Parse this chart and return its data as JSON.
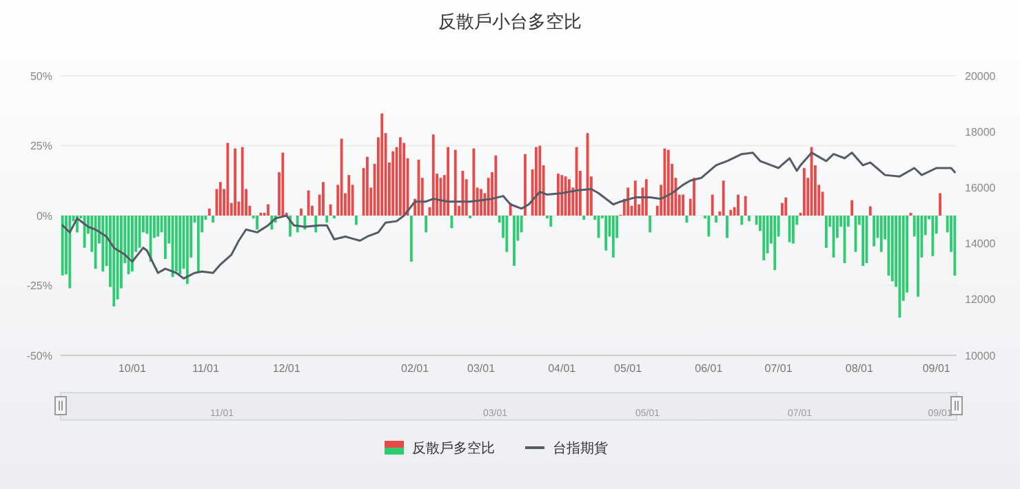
{
  "chart_data": {
    "type": "bar",
    "title": "反散戶小台多空比",
    "categories": [
      null,
      null,
      null,
      null,
      null,
      null,
      null,
      null,
      null,
      null,
      null,
      null,
      null,
      null,
      null,
      null,
      null,
      null,
      null,
      "10/01",
      null,
      null,
      null,
      null,
      null,
      null,
      null,
      null,
      null,
      null,
      null,
      null,
      null,
      null,
      null,
      null,
      null,
      null,
      null,
      "11/01",
      null,
      null,
      null,
      null,
      null,
      null,
      null,
      null,
      null,
      null,
      null,
      null,
      null,
      null,
      null,
      null,
      null,
      null,
      null,
      null,
      null,
      "12/01",
      null,
      null,
      null,
      null,
      null,
      null,
      null,
      null,
      null,
      null,
      null,
      null,
      null,
      null,
      null,
      null,
      null,
      null,
      null,
      null,
      null,
      null,
      null,
      null,
      null,
      null,
      null,
      null,
      null,
      null,
      null,
      null,
      null,
      null,
      "02/01",
      null,
      null,
      null,
      null,
      null,
      null,
      null,
      null,
      null,
      null,
      null,
      null,
      null,
      null,
      null,
      null,
      null,
      "03/01",
      null,
      null,
      null,
      null,
      null,
      null,
      null,
      null,
      null,
      null,
      null,
      null,
      null,
      null,
      null,
      null,
      null,
      null,
      null,
      null,
      null,
      "04/01",
      null,
      null,
      null,
      null,
      null,
      null,
      null,
      null,
      null,
      null,
      null,
      null,
      null,
      null,
      null,
      null,
      null,
      "05/01",
      null,
      null,
      null,
      null,
      null,
      null,
      null,
      null,
      null,
      null,
      null,
      null,
      null,
      null,
      null,
      null,
      null,
      null,
      null,
      null,
      null,
      "06/01",
      null,
      null,
      null,
      null,
      null,
      null,
      null,
      null,
      null,
      null,
      null,
      null,
      null,
      null,
      null,
      null,
      null,
      null,
      "07/01",
      null,
      null,
      null,
      null,
      null,
      null,
      null,
      null,
      null,
      null,
      null,
      null,
      null,
      null,
      null,
      null,
      null,
      null,
      null,
      null,
      null,
      "08/01",
      null,
      null,
      null,
      null,
      null,
      null,
      null,
      null,
      null,
      null,
      null,
      null,
      null,
      null,
      null,
      null,
      null,
      null,
      null,
      null,
      "09/01",
      null,
      null,
      null,
      null,
      null
    ],
    "series": [
      {
        "name": "反散戶多空比",
        "values": [
          -21.4,
          -21,
          -26,
          -2,
          -6,
          -1,
          -11.5,
          -6.5,
          -13,
          -19,
          -10,
          -20,
          -18,
          -25.5,
          -32.5,
          -30,
          -26,
          -17,
          -21,
          -20,
          -13,
          -11.5,
          -6,
          -6.5,
          -16.5,
          -8,
          -7.5,
          -6,
          -15.5,
          -10,
          -22,
          -20,
          -21,
          -19,
          -24.5,
          -15,
          -2.5,
          -20,
          -6,
          -1.5,
          2.5,
          -2.5,
          9.5,
          12,
          9.5,
          26,
          4.5,
          24,
          5,
          24.5,
          9.5,
          3.5,
          -1,
          -5,
          1,
          1,
          4,
          -5,
          -2.5,
          15.5,
          22.5,
          1,
          -7.5,
          0,
          -6,
          2.5,
          -5,
          9,
          3.5,
          -6,
          7.5,
          12,
          -2.5,
          4,
          -1,
          11,
          27.5,
          8,
          14.5,
          11,
          -3.3,
          0,
          17,
          21,
          10,
          18.5,
          28,
          36.5,
          29.5,
          19,
          23,
          24.5,
          28,
          26,
          20.5,
          -16.5,
          6,
          20,
          13.5,
          -6,
          3,
          29,
          15,
          13.5,
          14.5,
          24.5,
          -4.5,
          23.5,
          3.5,
          16,
          13,
          -1,
          24,
          10,
          9.5,
          8,
          13.5,
          15.5,
          21.5,
          -2.5,
          -8,
          -13,
          4.5,
          -18,
          -9,
          -6,
          22,
          0,
          16.5,
          24.5,
          25,
          18,
          -1,
          -4,
          0,
          15,
          14.5,
          14,
          13,
          10,
          24.5,
          16,
          -1.5,
          29.5,
          14,
          -1.5,
          -8,
          -1,
          -12.5,
          -7.5,
          -15,
          -8,
          0.3,
          6,
          10,
          3.5,
          12.5,
          4,
          10,
          13,
          -6,
          0,
          3.5,
          11,
          24,
          23.5,
          18.5,
          13.5,
          7.5,
          7.5,
          -2.5,
          6,
          13.5,
          0,
          0,
          -1,
          -7.5,
          7.5,
          -2.5,
          1.5,
          12.5,
          -8,
          2,
          3,
          7.5,
          -3.3,
          7,
          -2,
          0,
          -3.3,
          -5.5,
          -16,
          -13.5,
          -10,
          -19.5,
          -7.5,
          4.5,
          6.5,
          -9.5,
          -10,
          -3.3,
          1,
          17,
          13.5,
          24.5,
          18,
          11,
          8.5,
          -11.5,
          -4,
          -15,
          -8,
          -4,
          -17,
          -4,
          5.5,
          -13,
          -3.3,
          -18,
          -17,
          3.3,
          -11,
          -8,
          -13,
          -8.5,
          -21.5,
          -23.5,
          -25.5,
          -36.5,
          -30.5,
          -27.5,
          1,
          -7.5,
          -29,
          -15,
          -7,
          -1.3,
          -14.5,
          -6.5,
          8,
          0,
          -6,
          -13,
          -21.5
        ],
        "colors": [
          "#2ecc71",
          "#2ecc71",
          "#2ecc71",
          "#2ecc71",
          "#2ecc71",
          "#2ecc71",
          "#2ecc71",
          "#2ecc71",
          "#2ecc71",
          "#2ecc71",
          "#2ecc71",
          "#2ecc71",
          "#2ecc71",
          "#2ecc71",
          "#2ecc71",
          "#2ecc71",
          "#2ecc71",
          "#2ecc71",
          "#2ecc71",
          "#2ecc71",
          "#2ecc71",
          "#2ecc71",
          "#2ecc71",
          "#2ecc71",
          "#2ecc71",
          "#2ecc71",
          "#2ecc71",
          "#2ecc71",
          "#2ecc71",
          "#2ecc71",
          "#2ecc71",
          "#2ecc71",
          "#2ecc71",
          "#2ecc71",
          "#2ecc71",
          "#2ecc71",
          "#2ecc71",
          "#2ecc71",
          "#2ecc71",
          "#2ecc71",
          "#e84a4a",
          "#2ecc71",
          "#e84a4a",
          "#e84a4a",
          "#e84a4a",
          "#e84a4a",
          "#e84a4a",
          "#e84a4a",
          "#e84a4a",
          "#e84a4a",
          "#e84a4a",
          "#e84a4a",
          "#2ecc71",
          "#2ecc71",
          "#e84a4a",
          "#e84a4a",
          "#e84a4a",
          "#2ecc71",
          "#2ecc71",
          "#e84a4a",
          "#e84a4a",
          "#e84a4a",
          "#2ecc71",
          "#2ecc71",
          "#2ecc71",
          "#e84a4a",
          "#2ecc71",
          "#e84a4a",
          "#e84a4a",
          "#2ecc71",
          "#e84a4a",
          "#e84a4a",
          "#2ecc71",
          "#e84a4a",
          "#2ecc71",
          "#e84a4a",
          "#e84a4a",
          "#e84a4a",
          "#e84a4a",
          "#e84a4a",
          "#2ecc71",
          "#2ecc71",
          "#e84a4a",
          "#e84a4a",
          "#e84a4a",
          "#e84a4a",
          "#e84a4a",
          "#e84a4a",
          "#e84a4a",
          "#e84a4a",
          "#e84a4a",
          "#e84a4a",
          "#e84a4a",
          "#e84a4a",
          "#e84a4a",
          "#2ecc71",
          "#e84a4a",
          "#e84a4a",
          "#e84a4a",
          "#2ecc71",
          "#e84a4a",
          "#e84a4a",
          "#e84a4a",
          "#e84a4a",
          "#e84a4a",
          "#e84a4a",
          "#2ecc71",
          "#e84a4a",
          "#e84a4a",
          "#e84a4a",
          "#e84a4a",
          "#2ecc71",
          "#e84a4a",
          "#e84a4a",
          "#e84a4a",
          "#e84a4a",
          "#e84a4a",
          "#e84a4a",
          "#e84a4a",
          "#2ecc71",
          "#2ecc71",
          "#2ecc71",
          "#e84a4a",
          "#2ecc71",
          "#2ecc71",
          "#2ecc71",
          "#e84a4a",
          "#2ecc71",
          "#e84a4a",
          "#e84a4a",
          "#e84a4a",
          "#e84a4a",
          "#2ecc71",
          "#2ecc71",
          "#2ecc71",
          "#e84a4a",
          "#e84a4a",
          "#e84a4a",
          "#e84a4a",
          "#e84a4a",
          "#e84a4a",
          "#e84a4a",
          "#2ecc71",
          "#e84a4a",
          "#e84a4a",
          "#2ecc71",
          "#2ecc71",
          "#2ecc71",
          "#2ecc71",
          "#2ecc71",
          "#2ecc71",
          "#2ecc71",
          "#e84a4a",
          "#e84a4a",
          "#e84a4a",
          "#e84a4a",
          "#e84a4a",
          "#e84a4a",
          "#e84a4a",
          "#e84a4a",
          "#2ecc71",
          "#2ecc71",
          "#e84a4a",
          "#e84a4a",
          "#e84a4a",
          "#e84a4a",
          "#e84a4a",
          "#e84a4a",
          "#e84a4a",
          "#e84a4a",
          "#2ecc71",
          "#e84a4a",
          "#e84a4a",
          "#2ecc71",
          "#2ecc71",
          "#2ecc71",
          "#2ecc71",
          "#e84a4a",
          "#2ecc71",
          "#e84a4a",
          "#e84a4a",
          "#2ecc71",
          "#e84a4a",
          "#e84a4a",
          "#e84a4a",
          "#2ecc71",
          "#e84a4a",
          "#2ecc71",
          "#2ecc71",
          "#2ecc71",
          "#2ecc71",
          "#2ecc71",
          "#2ecc71",
          "#2ecc71",
          "#2ecc71",
          "#2ecc71",
          "#e84a4a",
          "#e84a4a",
          "#2ecc71",
          "#2ecc71",
          "#2ecc71",
          "#e84a4a",
          "#e84a4a",
          "#e84a4a",
          "#e84a4a",
          "#e84a4a",
          "#e84a4a",
          "#e84a4a",
          "#2ecc71",
          "#2ecc71",
          "#2ecc71",
          "#2ecc71",
          "#2ecc71",
          "#2ecc71",
          "#2ecc71",
          "#e84a4a",
          "#2ecc71",
          "#2ecc71",
          "#2ecc71",
          "#2ecc71",
          "#e84a4a",
          "#2ecc71",
          "#2ecc71",
          "#2ecc71",
          "#2ecc71",
          "#2ecc71",
          "#2ecc71",
          "#2ecc71",
          "#2ecc71",
          "#2ecc71",
          "#2ecc71",
          "#e84a4a",
          "#2ecc71",
          "#2ecc71",
          "#2ecc71",
          "#2ecc71",
          "#2ecc71",
          "#2ecc71",
          "#2ecc71",
          "#e84a4a",
          "#2ecc71",
          "#2ecc71",
          "#2ecc71",
          "#2ecc71"
        ]
      },
      {
        "name": "台指期貨",
        "type": "line",
        "axis": "y2",
        "color": "#555a66",
        "values": [
          14650,
          null,
          14400,
          null,
          14900,
          null,
          null,
          14600,
          null,
          14500,
          null,
          null,
          14250,
          null,
          13850,
          null,
          null,
          13600,
          null,
          13350,
          null,
          null,
          13850,
          13750,
          null,
          null,
          12950,
          null,
          13100,
          null,
          null,
          12950,
          null,
          12750,
          null,
          null,
          12950,
          null,
          13000,
          null,
          null,
          12950,
          null,
          13250,
          null,
          null,
          13600,
          null,
          14100,
          null,
          14500,
          null,
          null,
          14400,
          null,
          null,
          14650,
          null,
          14900,
          null,
          null,
          15000,
          null,
          14650,
          null,
          null,
          14600,
          null,
          null,
          null,
          14650,
          null,
          14650,
          null,
          14150,
          null,
          null,
          14250,
          null,
          null,
          null,
          14100,
          null,
          14250,
          null,
          null,
          14400,
          null,
          14750,
          null,
          null,
          14800,
          null,
          15000,
          null,
          null,
          15500,
          null,
          null,
          15500,
          null,
          15600,
          null,
          null,
          null,
          15500,
          null,
          15500,
          null,
          null,
          null,
          15500,
          null,
          null,
          15550,
          null,
          null,
          15600,
          null,
          null,
          15700,
          null,
          15400,
          null,
          null,
          15250,
          null,
          15400,
          null,
          null,
          15850,
          null,
          15750,
          null,
          null,
          null,
          15800,
          null,
          null,
          null,
          15900,
          null,
          null,
          null,
          15950,
          null,
          15800,
          null,
          null,
          null,
          15400,
          null,
          15500,
          null,
          null,
          null,
          15650,
          null,
          null,
          null,
          15650,
          null,
          null,
          15600,
          null,
          null,
          15800,
          null,
          null,
          16100,
          null,
          16250,
          null,
          null,
          16350,
          null,
          null,
          null,
          16800,
          null,
          null,
          16950,
          null,
          null,
          null,
          17200,
          null,
          null,
          17250,
          null,
          16950,
          null,
          null,
          16800,
          null,
          16700,
          null,
          null,
          17050,
          null,
          16600,
          16800,
          null,
          null,
          17250,
          null,
          null,
          null,
          16950,
          null,
          17200,
          null,
          null,
          17050,
          null,
          17250,
          null,
          null,
          16800,
          null,
          16900,
          null,
          null,
          null,
          16450,
          null,
          null,
          null,
          16400,
          null,
          null,
          null,
          16700,
          null,
          16450,
          null,
          null,
          null,
          16700,
          null,
          null,
          null,
          16700,
          16550
        ]
      }
    ],
    "ylim": [
      -50,
      50
    ],
    "yticks": [
      {
        "value": -50,
        "label": "-50%"
      },
      {
        "value": -25,
        "label": "-25%"
      },
      {
        "value": 0,
        "label": "0%"
      },
      {
        "value": 25,
        "label": "25%"
      },
      {
        "value": 50,
        "label": "50%"
      }
    ],
    "y2lim": [
      10000,
      20000
    ],
    "y2ticks": [
      10000,
      12000,
      14000,
      16000,
      18000,
      20000
    ],
    "grid": "y",
    "legend": "bottom",
    "annotations": [
      "11/01",
      "03/01",
      "05/01",
      "07/01",
      "09/01"
    ]
  }
}
